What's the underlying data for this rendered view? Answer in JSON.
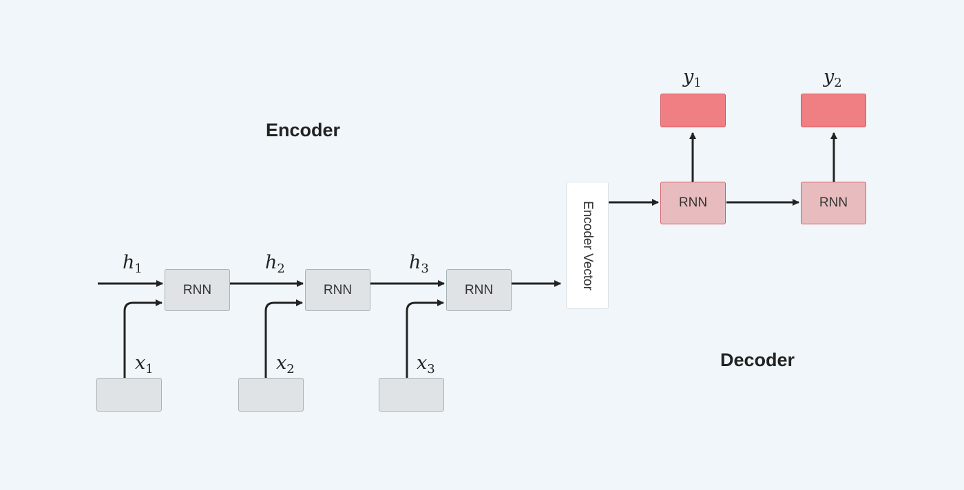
{
  "labels": {
    "encoder": "Encoder",
    "decoder": "Decoder",
    "encoder_vector": "Encoder Vector"
  },
  "encoder": {
    "cells": [
      {
        "label": "RNN",
        "hidden": {
          "var": "h",
          "sub": "1"
        },
        "input": {
          "var": "x",
          "sub": "1"
        }
      },
      {
        "label": "RNN",
        "hidden": {
          "var": "h",
          "sub": "2"
        },
        "input": {
          "var": "x",
          "sub": "2"
        }
      },
      {
        "label": "RNN",
        "hidden": {
          "var": "h",
          "sub": "3"
        },
        "input": {
          "var": "x",
          "sub": "3"
        }
      }
    ]
  },
  "decoder": {
    "cells": [
      {
        "label": "RNN",
        "output": {
          "var": "y",
          "sub": "1"
        }
      },
      {
        "label": "RNN",
        "output": {
          "var": "y",
          "sub": "2"
        }
      }
    ]
  },
  "colors": {
    "background": "#f0f6f9",
    "encoder_box": "#dfe3e5",
    "decoder_rnn": "#e8bcbe",
    "decoder_output": "#f07f84",
    "arrow": "#222222"
  }
}
